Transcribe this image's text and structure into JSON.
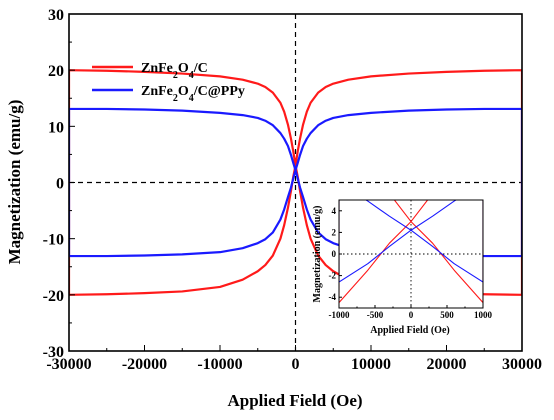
{
  "chart_data": [
    {
      "type": "line",
      "title": "",
      "xlabel": "Applied Field (Oe)",
      "ylabel": "Magnetization (emu/g)",
      "xlim": [
        -30000,
        30000
      ],
      "ylim": [
        -30,
        30
      ],
      "xticks": [
        -30000,
        -20000,
        -10000,
        0,
        10000,
        20000,
        30000
      ],
      "yticks": [
        -30,
        -20,
        -10,
        0,
        10,
        20,
        30
      ],
      "grid": false,
      "reference_lines": "dashed lines at x = 0 and y = 0",
      "legend_position": "top-left",
      "series": [
        {
          "name": "ZnFe2O4/C",
          "legend_parts": [
            {
              "t": "ZnFe",
              "sub": false
            },
            {
              "t": "2",
              "sub": true
            },
            {
              "t": "O",
              "sub": false
            },
            {
              "t": "4",
              "sub": true
            },
            {
              "t": "/C",
              "sub": false
            }
          ],
          "color": "#ff1a1a",
          "x": [
            -30000,
            -25000,
            -20000,
            -15000,
            -10000,
            -7000,
            -5000,
            -4000,
            -3000,
            -2000,
            -1500,
            -1000,
            -600,
            -300,
            0,
            300,
            600,
            1000,
            1500,
            2000,
            3000,
            4000,
            5000,
            7000,
            10000,
            15000,
            20000,
            25000,
            30000
          ],
          "y_branch_descending": [
            20.0,
            19.9,
            19.7,
            19.4,
            18.9,
            18.3,
            17.6,
            17.0,
            16.0,
            14.2,
            12.6,
            10.3,
            7.8,
            5.6,
            3.0,
            1.0,
            -1.5,
            -4.5,
            -7.6,
            -10.0,
            -13.0,
            -14.7,
            -15.8,
            -17.3,
            -18.6,
            -19.3,
            -19.7,
            -19.9,
            -20.0
          ],
          "y_branch_ascending": [
            -20.0,
            -19.9,
            -19.7,
            -19.4,
            -18.6,
            -17.3,
            -15.8,
            -14.7,
            -13.0,
            -10.0,
            -7.6,
            -4.5,
            -1.5,
            1.0,
            3.0,
            5.6,
            7.8,
            10.3,
            12.6,
            14.2,
            16.0,
            17.0,
            17.6,
            18.3,
            18.9,
            19.4,
            19.7,
            19.9,
            20.0
          ]
        },
        {
          "name": "ZnFe2O4/C@PPy",
          "legend_parts": [
            {
              "t": "ZnFe",
              "sub": false
            },
            {
              "t": "2",
              "sub": true
            },
            {
              "t": "O",
              "sub": false
            },
            {
              "t": "4",
              "sub": true
            },
            {
              "t": "/C@PPy",
              "sub": false
            }
          ],
          "color": "#1a1aff",
          "x": [
            -30000,
            -25000,
            -20000,
            -15000,
            -10000,
            -7000,
            -5000,
            -4000,
            -3000,
            -2000,
            -1500,
            -1000,
            -600,
            -300,
            0,
            300,
            600,
            1000,
            1500,
            2000,
            3000,
            4000,
            5000,
            7000,
            10000,
            15000,
            20000,
            25000,
            30000
          ],
          "y_branch_descending": [
            13.1,
            13.1,
            13.0,
            12.8,
            12.4,
            12.0,
            11.5,
            11.0,
            10.2,
            8.8,
            7.8,
            6.5,
            4.9,
            3.5,
            2.2,
            0.7,
            -0.9,
            -2.6,
            -4.8,
            -6.6,
            -8.9,
            -10.1,
            -10.8,
            -11.7,
            -12.4,
            -12.8,
            -13.0,
            -13.1,
            -13.1
          ],
          "y_branch_ascending": [
            -13.1,
            -13.1,
            -13.0,
            -12.8,
            -12.4,
            -11.7,
            -10.8,
            -10.1,
            -8.9,
            -6.6,
            -4.8,
            -2.6,
            -0.9,
            0.7,
            2.2,
            3.5,
            4.9,
            6.5,
            7.8,
            8.8,
            10.2,
            11.0,
            11.5,
            12.0,
            12.4,
            12.8,
            13.0,
            13.1,
            13.1
          ]
        }
      ]
    },
    {
      "type": "line",
      "title": "",
      "xlabel": "Applied Field (Oe)",
      "ylabel": "Magnetization (emu/g)",
      "xlim": [
        -1000,
        1000
      ],
      "ylim": [
        -5,
        5
      ],
      "xticks": [
        -1000,
        -500,
        0,
        500,
        1000
      ],
      "yticks": [
        -4,
        -2,
        0,
        2,
        4
      ],
      "grid": false,
      "reference_lines": "dotted lines at x = 0 and y = 0",
      "series": [
        {
          "name": "ZnFe2O4/C",
          "color": "#ff1a1a",
          "x": [
            -1000,
            -600,
            -300,
            0,
            300,
            600,
            1000
          ],
          "y_branch_descending": [
            10.3,
            7.8,
            5.6,
            3.0,
            1.0,
            -1.5,
            -4.5
          ],
          "y_branch_ascending": [
            -4.5,
            -1.5,
            1.0,
            3.0,
            5.6,
            7.8,
            10.3
          ]
        },
        {
          "name": "ZnFe2O4/C@PPy",
          "color": "#1a1aff",
          "x": [
            -1000,
            -600,
            -300,
            0,
            300,
            600,
            1000
          ],
          "y_branch_descending": [
            6.5,
            4.9,
            3.5,
            2.2,
            0.7,
            -0.9,
            -2.6
          ],
          "y_branch_ascending": [
            -2.6,
            -0.9,
            0.7,
            2.2,
            3.5,
            4.9,
            6.5
          ]
        }
      ]
    }
  ]
}
